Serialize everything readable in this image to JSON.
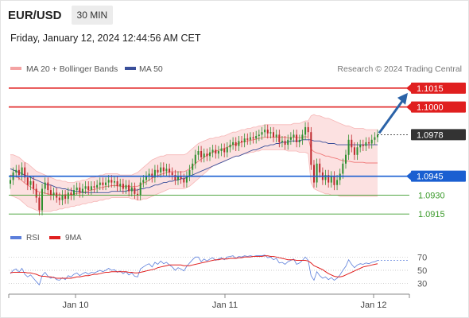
{
  "header": {
    "symbol": "EUR/USD",
    "interval": "30 MIN",
    "datetime": "Friday, January 12, 2024 12:44:56 AM CET"
  },
  "legend": {
    "ma20_bb": "MA 20 + Bollinger Bands",
    "ma50": "MA 50",
    "copyright": "Research © 2024 Trading Central"
  },
  "colors": {
    "resistance": "#e01f1f",
    "support": "#1a5fd1",
    "target": "#3a9a2a",
    "current": "#333333",
    "up_candle": "#2f8f2f",
    "down_candle": "#c0282d",
    "bb_fill": "#fbd7d7",
    "ma50": "#3a4f9a",
    "ma20": "#f07a7a",
    "rsi": "#5c7fdb",
    "rsi_ma": "#e01f1f",
    "arrow": "#2b63a8"
  },
  "chart_data": {
    "type": "line",
    "title": "",
    "x_ticks": [
      "Jan 10",
      "Jan 11",
      "Jan 12"
    ],
    "ylim": [
      1.0905,
      1.1025
    ],
    "levels": [
      {
        "name": "resistance",
        "value": 1.1015,
        "label": "1.1015"
      },
      {
        "name": "resistance",
        "value": 1.1,
        "label": "1.1000"
      },
      {
        "name": "current",
        "value": 1.0978,
        "label": "1.0978"
      },
      {
        "name": "support",
        "value": 1.0945,
        "label": "1.0945"
      },
      {
        "name": "target",
        "value": 1.093,
        "label": "1.0930"
      },
      {
        "name": "target",
        "value": 1.0915,
        "label": "1.0915"
      }
    ],
    "price_close": [
      1.0942,
      1.0948,
      1.095,
      1.0946,
      1.0952,
      1.0944,
      1.0938,
      1.0941,
      1.0935,
      1.0928,
      1.0918,
      1.0935,
      1.094,
      1.0934,
      1.093,
      1.0932,
      1.0928,
      1.0926,
      1.093,
      1.0927,
      1.0932,
      1.093,
      1.0934,
      1.0936,
      1.0932,
      1.0935,
      1.0937,
      1.0934,
      1.0937,
      1.0936,
      1.0938,
      1.094,
      1.0938,
      1.094,
      1.0942,
      1.094,
      1.0941,
      1.0937,
      1.0939,
      1.0935,
      1.0938,
      1.0933,
      1.0936,
      1.0931,
      1.093,
      1.094,
      1.0942,
      1.0945,
      1.0947,
      1.0944,
      1.095,
      1.0948,
      1.0952,
      1.0949,
      1.0951,
      1.0948,
      1.0946,
      1.0942,
      1.0945,
      1.0943,
      1.094,
      1.0945,
      1.095,
      1.0955,
      1.0962,
      1.0965,
      1.096,
      1.0963,
      1.0961,
      1.0964,
      1.0966,
      1.0963,
      1.0965,
      1.0967,
      1.0964,
      1.0968,
      1.097,
      1.0972,
      1.0969,
      1.0973,
      1.0972,
      1.0975,
      1.0974,
      1.0976,
      1.0975,
      1.0977,
      1.0978,
      1.098,
      1.0982,
      1.0979,
      1.098,
      1.0976,
      1.0978,
      1.0972,
      1.0973,
      1.097,
      1.0974,
      1.0976,
      1.0978,
      1.0972,
      1.0974,
      1.0978,
      1.0984,
      1.098,
      1.0954,
      1.094,
      1.0955,
      1.0948,
      1.0942,
      1.0946,
      1.094,
      1.0945,
      1.0938,
      1.0942,
      1.0947,
      1.0955,
      1.0962,
      1.0974,
      1.0968,
      1.0962,
      1.0968,
      1.097,
      1.0969,
      1.0972,
      1.0971,
      1.0974,
      1.0976,
      1.0978
    ],
    "bb_upper": [
      1.0962,
      1.0962,
      1.0961,
      1.096,
      1.0958,
      1.0956,
      1.0955,
      1.0953,
      1.0951,
      1.0949,
      1.0948,
      1.0947,
      1.0946,
      1.0945,
      1.0944,
      1.0943,
      1.0942,
      1.0942,
      1.0941,
      1.0941,
      1.094,
      1.094,
      1.094,
      1.0941,
      1.0941,
      1.0942,
      1.0942,
      1.0943,
      1.0944,
      1.0944,
      1.0945,
      1.0946,
      1.0946,
      1.0947,
      1.0947,
      1.0947,
      1.0947,
      1.0947,
      1.0946,
      1.0946,
      1.0946,
      1.0946,
      1.0946,
      1.0947,
      1.0948,
      1.095,
      1.0952,
      1.0954,
      1.0956,
      1.0958,
      1.0959,
      1.096,
      1.0961,
      1.0961,
      1.0962,
      1.0962,
      1.0962,
      1.0962,
      1.0962,
      1.0962,
      1.0962,
      1.0963,
      1.0965,
      1.0967,
      1.0969,
      1.0971,
      1.0972,
      1.0973,
      1.0974,
      1.0975,
      1.0975,
      1.0976,
      1.0976,
      1.0977,
      1.0977,
      1.0978,
      1.0979,
      1.098,
      1.098,
      1.0981,
      1.0982,
      1.0982,
      1.0983,
      1.0983,
      1.0984,
      1.0984,
      1.0985,
      1.0985,
      1.0986,
      1.0986,
      1.0986,
      1.0986,
      1.0986,
      1.0986,
      1.0986,
      1.0986,
      1.0986,
      1.0986,
      1.0987,
      1.0987,
      1.0987,
      1.0988,
      1.0989,
      1.0989,
      1.0993,
      1.0994,
      1.0993,
      1.0993,
      1.0992,
      1.0991,
      1.0991,
      1.099,
      1.0989,
      1.0988,
      1.0987,
      1.0986,
      1.0985,
      1.0985,
      1.0984,
      1.0983,
      1.0983,
      1.0983,
      1.0983,
      1.0982,
      1.0982,
      1.0982,
      1.0982,
      1.0982
    ],
    "bb_lower": [
      1.093,
      1.0929,
      1.0928,
      1.0927,
      1.0925,
      1.0923,
      1.0921,
      1.092,
      1.0919,
      1.0918,
      1.0917,
      1.0917,
      1.0917,
      1.0917,
      1.0917,
      1.0918,
      1.0918,
      1.0919,
      1.0919,
      1.092,
      1.092,
      1.0921,
      1.0921,
      1.0922,
      1.0922,
      1.0923,
      1.0923,
      1.0924,
      1.0924,
      1.0925,
      1.0925,
      1.0926,
      1.0926,
      1.0927,
      1.0927,
      1.0928,
      1.0928,
      1.0928,
      1.0928,
      1.0928,
      1.0928,
      1.0928,
      1.0927,
      1.0927,
      1.0926,
      1.0926,
      1.0927,
      1.0927,
      1.0928,
      1.0929,
      1.093,
      1.0931,
      1.0932,
      1.0933,
      1.0934,
      1.0935,
      1.0935,
      1.0935,
      1.0935,
      1.0935,
      1.0935,
      1.0936,
      1.0937,
      1.0939,
      1.0941,
      1.0943,
      1.0945,
      1.0947,
      1.0949,
      1.0951,
      1.0953,
      1.0954,
      1.0955,
      1.0956,
      1.0957,
      1.0958,
      1.0959,
      1.096,
      1.0961,
      1.0961,
      1.0962,
      1.0963,
      1.0963,
      1.0964,
      1.0964,
      1.0965,
      1.0965,
      1.0966,
      1.0966,
      1.0966,
      1.0966,
      1.0966,
      1.0966,
      1.0966,
      1.0966,
      1.0966,
      1.0965,
      1.0965,
      1.0965,
      1.0965,
      1.0964,
      1.0964,
      1.0964,
      1.0963,
      1.094,
      1.0935,
      1.0934,
      1.0933,
      1.0932,
      1.0931,
      1.0931,
      1.093,
      1.093,
      1.093,
      1.0929,
      1.0929,
      1.0929,
      1.0929,
      1.0929,
      1.0929,
      1.0929,
      1.0929,
      1.0929,
      1.0929,
      1.0929,
      1.0929,
      1.0929,
      1.0929
    ],
    "ma50": [
      1.0951,
      1.095,
      1.0949,
      1.0948,
      1.0947,
      1.0946,
      1.0945,
      1.0944,
      1.0943,
      1.0942,
      1.0941,
      1.094,
      1.0939,
      1.0938,
      1.0938,
      1.0937,
      1.0936,
      1.0936,
      1.0935,
      1.0935,
      1.0934,
      1.0934,
      1.0933,
      1.0933,
      1.0933,
      1.0932,
      1.0932,
      1.0932,
      1.0932,
      1.0932,
      1.0932,
      1.0932,
      1.0932,
      1.0932,
      1.0932,
      1.0933,
      1.0933,
      1.0933,
      1.0933,
      1.0933,
      1.0933,
      1.0934,
      1.0934,
      1.0934,
      1.0934,
      1.0935,
      1.0935,
      1.0936,
      1.0936,
      1.0937,
      1.0938,
      1.0938,
      1.0939,
      1.094,
      1.094,
      1.0941,
      1.0941,
      1.0942,
      1.0942,
      1.0943,
      1.0943,
      1.0944,
      1.0945,
      1.0946,
      1.0947,
      1.0948,
      1.0949,
      1.095,
      1.0951,
      1.0952,
      1.0953,
      1.0954,
      1.0955,
      1.0956,
      1.0957,
      1.0958,
      1.0959,
      1.096,
      1.0961,
      1.0961,
      1.0962,
      1.0963,
      1.0964,
      1.0965,
      1.0966,
      1.0966,
      1.0967,
      1.0968,
      1.0969,
      1.0969,
      1.097,
      1.097,
      1.0971,
      1.0971,
      1.0972,
      1.0972,
      1.0972,
      1.0973,
      1.0973,
      1.0973,
      1.0973,
      1.0974,
      1.0974,
      1.0974,
      1.0974,
      1.0973,
      1.0973,
      1.0973,
      1.0972,
      1.0972,
      1.0971,
      1.0971,
      1.0971,
      1.097,
      1.097,
      1.097,
      1.097,
      1.097,
      1.097,
      1.097,
      1.097,
      1.097,
      1.097,
      1.097,
      1.097,
      1.097,
      1.097,
      1.097
    ],
    "rsi_panel": {
      "legend": [
        "RSI",
        "9MA"
      ],
      "ticks": [
        70,
        50,
        30
      ],
      "ylim": [
        20,
        80
      ],
      "rsi": [
        45,
        50,
        52,
        47,
        53,
        44,
        40,
        43,
        38,
        33,
        28,
        42,
        47,
        41,
        38,
        40,
        36,
        35,
        39,
        36,
        42,
        40,
        44,
        46,
        42,
        45,
        47,
        44,
        47,
        46,
        48,
        50,
        48,
        50,
        53,
        50,
        51,
        47,
        49,
        45,
        48,
        43,
        46,
        41,
        40,
        52,
        55,
        58,
        60,
        55,
        62,
        59,
        64,
        60,
        62,
        58,
        55,
        50,
        54,
        52,
        49,
        56,
        61,
        66,
        70,
        70,
        63,
        67,
        64,
        67,
        69,
        65,
        67,
        69,
        66,
        70,
        71,
        72,
        68,
        71,
        70,
        72,
        71,
        72,
        71,
        72,
        72,
        72,
        73,
        69,
        70,
        66,
        68,
        61,
        62,
        59,
        63,
        65,
        67,
        59,
        61,
        65,
        70,
        65,
        42,
        35,
        48,
        42,
        38,
        40,
        36,
        39,
        35,
        38,
        43,
        50,
        56,
        66,
        59,
        54,
        58,
        60,
        59,
        61,
        60,
        62,
        63,
        65
      ],
      "rsi_ma": [
        46,
        47,
        47,
        47,
        47,
        47,
        46,
        46,
        45,
        44,
        42,
        41,
        41,
        40,
        40,
        39,
        38,
        38,
        38,
        38,
        38,
        38,
        39,
        40,
        40,
        41,
        42,
        42,
        43,
        44,
        44,
        45,
        46,
        47,
        47,
        48,
        48,
        48,
        48,
        48,
        48,
        47,
        47,
        46,
        46,
        47,
        48,
        49,
        50,
        51,
        52,
        54,
        55,
        56,
        57,
        58,
        58,
        58,
        58,
        58,
        57,
        57,
        57,
        58,
        59,
        60,
        61,
        62,
        63,
        64,
        65,
        66,
        66,
        67,
        67,
        67,
        68,
        68,
        68,
        69,
        69,
        70,
        70,
        70,
        71,
        71,
        71,
        71,
        72,
        72,
        71,
        71,
        70,
        69,
        68,
        67,
        66,
        66,
        66,
        65,
        65,
        65,
        65,
        64,
        61,
        57,
        55,
        53,
        51,
        48,
        45,
        43,
        41,
        40,
        40,
        41,
        43,
        45,
        47,
        49,
        51,
        53,
        55,
        56,
        57,
        58,
        59,
        60
      ]
    }
  }
}
